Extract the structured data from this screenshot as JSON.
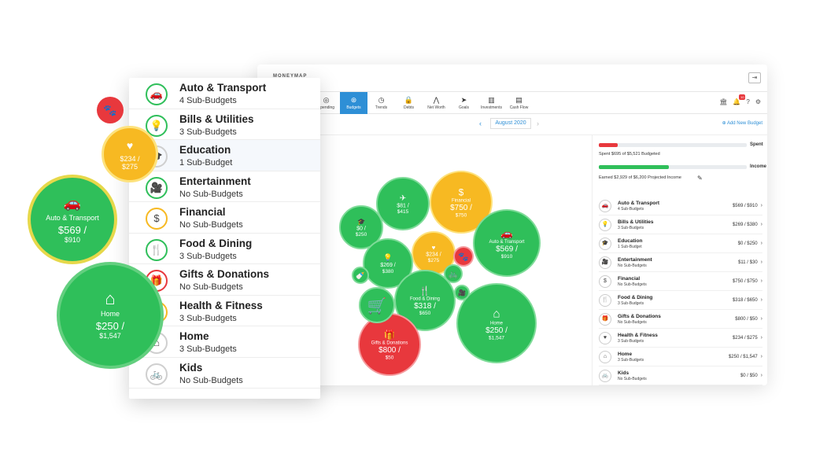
{
  "app": {
    "brand": "MONEYMAP",
    "month": "August 2020",
    "add_budget": "Add New Budget",
    "notification_count": "10"
  },
  "nav": {
    "tabs": [
      {
        "label": "Spending",
        "icon": "spending-icon"
      },
      {
        "label": "Budgets",
        "icon": "budgets-icon"
      },
      {
        "label": "Trends",
        "icon": "trends-icon"
      },
      {
        "label": "Debts",
        "icon": "debts-icon"
      },
      {
        "label": "Net Worth",
        "icon": "net-worth-icon"
      },
      {
        "label": "Goals",
        "icon": "goals-icon"
      },
      {
        "label": "Investments",
        "icon": "investments-icon"
      },
      {
        "label": "Cash Flow",
        "icon": "cash-flow-icon"
      }
    ]
  },
  "summary": {
    "spent_tag": "Spent",
    "spent_text": "Spent $695 of $5,521 Budgeted",
    "spent_fraction": 0.126,
    "income_tag": "Income",
    "income_text": "Earned $2,929 of $6,200 Projected Income",
    "income_fraction": 0.472,
    "spent_color": "#e8383d",
    "income_color": "#2fbf5a"
  },
  "budgets": [
    {
      "name": "Auto & Transport",
      "sub": "4 Sub-Budgets",
      "amount": "$569 / $910",
      "icon": "car-icon",
      "glyph": "🚗"
    },
    {
      "name": "Bills & Utilities",
      "sub": "3 Sub-Budgets",
      "amount": "$269 / $380",
      "icon": "lightbulb-icon",
      "glyph": "💡"
    },
    {
      "name": "Education",
      "sub": "1 Sub-Budget",
      "amount": "$0 / $250",
      "icon": "graduation-cap-icon",
      "glyph": "🎓"
    },
    {
      "name": "Entertainment",
      "sub": "No Sub-Budgets",
      "amount": "$11 / $30",
      "icon": "camera-icon",
      "glyph": "🎥"
    },
    {
      "name": "Financial",
      "sub": "No Sub-Budgets",
      "amount": "$750 / $750",
      "icon": "dollar-icon",
      "glyph": "$"
    },
    {
      "name": "Food & Dining",
      "sub": "3 Sub-Budgets",
      "amount": "$318 / $650",
      "icon": "utensils-icon",
      "glyph": "🍴"
    },
    {
      "name": "Gifts & Donations",
      "sub": "No Sub-Budgets",
      "amount": "$800 / $50",
      "icon": "gift-icon",
      "glyph": "🎁"
    },
    {
      "name": "Health & Fitness",
      "sub": "3 Sub-Budgets",
      "amount": "$234 / $275",
      "icon": "heart-pulse-icon",
      "glyph": "♥"
    },
    {
      "name": "Home",
      "sub": "3 Sub-Budgets",
      "amount": "$250 / $1,547",
      "icon": "home-icon",
      "glyph": "⌂"
    },
    {
      "name": "Kids",
      "sub": "No Sub-Budgets",
      "amount": "$0 / $50",
      "icon": "bicycle-icon",
      "glyph": "🚲"
    }
  ],
  "card_list": [
    {
      "name": "Auto & Transport",
      "sub": "4 Sub-Budgets"
    },
    {
      "name": "Bills & Utilities",
      "sub": "3 Sub-Budgets"
    },
    {
      "name": "Education",
      "sub": "1 Sub-Budget"
    },
    {
      "name": "Entertainment",
      "sub": "No Sub-Budgets"
    },
    {
      "name": "Financial",
      "sub": "No Sub-Budgets"
    },
    {
      "name": "Food & Dining",
      "sub": "3 Sub-Budgets"
    },
    {
      "name": "Gifts & Donations",
      "sub": "No Sub-Budgets"
    },
    {
      "name": "Health & Fitness",
      "sub": "3 Sub-Budgets"
    },
    {
      "name": "Home",
      "sub": "3 Sub-Budgets"
    },
    {
      "name": "Kids",
      "sub": "No Sub-Budgets"
    }
  ],
  "bubble_chart": [
    {
      "label": "",
      "amount": "$81 /",
      "total": "$415",
      "color": "#2fbf5a",
      "glyph": "✈"
    },
    {
      "label": "",
      "amount": "$0 /",
      "total": "$250",
      "color": "#2fbf5a",
      "glyph": "🎓"
    },
    {
      "label": "Financial",
      "amount": "$750 /",
      "total": "$750",
      "color": "#f7b922",
      "glyph": "$"
    },
    {
      "label": "Auto & Transport",
      "amount": "$569 /",
      "total": "$910",
      "color": "#2fbf5a",
      "glyph": "🚗"
    },
    {
      "label": "",
      "amount": "$234 /",
      "total": "$275",
      "color": "#f7b922",
      "glyph": "♥"
    },
    {
      "label": "",
      "amount": "$269 /",
      "total": "$380",
      "color": "#2fbf5a",
      "glyph": "💡"
    },
    {
      "label": "Food & Dining",
      "amount": "$318 /",
      "total": "$650",
      "color": "#2fbf5a",
      "glyph": "🍴"
    },
    {
      "label": "Home",
      "amount": "$250 /",
      "total": "$1,547",
      "color": "#2fbf5a",
      "glyph": "⌂"
    },
    {
      "label": "Gifts & Donations",
      "amount": "$800 /",
      "total": "$50",
      "color": "#e8383d",
      "glyph": "🎁"
    },
    {
      "label": "",
      "amount": "",
      "total": "",
      "color": "#2fbf5a",
      "glyph": "🛒"
    },
    {
      "label": "",
      "amount": "",
      "total": "",
      "color": "#e8383d",
      "glyph": "🐾"
    },
    {
      "label": "",
      "amount": "",
      "total": "",
      "color": "#2fbf5a",
      "glyph": "🚲"
    },
    {
      "label": "",
      "amount": "",
      "total": "",
      "color": "#2fbf5a",
      "glyph": "🎥"
    },
    {
      "label": "",
      "amount": "",
      "total": "",
      "color": "#2fbf5a",
      "glyph": "🍼"
    }
  ],
  "floating": {
    "pet": {
      "glyph": "🐾",
      "color": "#e8383d"
    },
    "health": {
      "amount": "$234 /",
      "total": "$275",
      "color": "#f7b922",
      "glyph": "♥"
    },
    "auto": {
      "label": "Auto & Transport",
      "amount": "$569 /",
      "total": "$910",
      "color": "#2fbf5a",
      "glyph": "🚗"
    },
    "home": {
      "label": "Home",
      "amount": "$250 /",
      "total": "$1,547",
      "color": "#2fbf5a",
      "glyph": "⌂"
    }
  }
}
